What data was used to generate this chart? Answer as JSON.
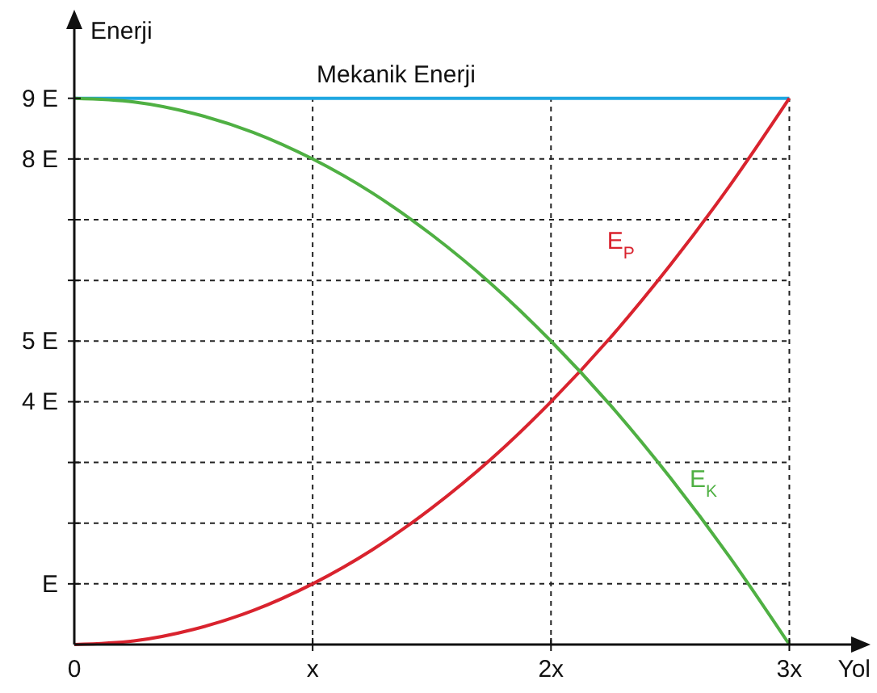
{
  "chart_data": {
    "type": "line",
    "xlabel": "Yol",
    "ylabel": "Enerji",
    "xlim": [
      0,
      3.3
    ],
    "ylim": [
      0,
      10.3
    ],
    "xticks": [
      {
        "value": 0,
        "label": "0"
      },
      {
        "value": 1,
        "label": "x"
      },
      {
        "value": 2,
        "label": "2x"
      },
      {
        "value": 3,
        "label": "3x"
      }
    ],
    "yticks": [
      {
        "value": 1,
        "label": "E"
      },
      {
        "value": 2,
        "label": null
      },
      {
        "value": 3,
        "label": null
      },
      {
        "value": 4,
        "label": "4 E"
      },
      {
        "value": 5,
        "label": "5 E"
      },
      {
        "value": 6,
        "label": null
      },
      {
        "value": 7,
        "label": null
      },
      {
        "value": 8,
        "label": "8 E"
      },
      {
        "value": 9,
        "label": "9 E"
      }
    ],
    "grid": true,
    "marker": "none",
    "line_style": "solid",
    "annotations": [
      {
        "text": "Mekanik Enerji",
        "x": 1.35,
        "y": 9
      }
    ],
    "series": [
      {
        "color": "#1fa7e1",
        "x": [
          0,
          3
        ],
        "values": [
          9,
          9
        ]
      },
      {
        "name": "E$_{P}$",
        "color": "#d9232e",
        "x": [
          0,
          0.25,
          0.5,
          0.75,
          1,
          1.25,
          1.5,
          1.75,
          2,
          2.25,
          2.5,
          2.75,
          3
        ],
        "values": [
          0,
          0.06,
          0.25,
          0.56,
          1,
          1.56,
          2.25,
          3.06,
          4,
          5.06,
          6.25,
          7.56,
          9
        ]
      },
      {
        "name": "E$_{K}$",
        "color": "#4fb043",
        "x": [
          0,
          0.25,
          0.5,
          0.75,
          1,
          1.25,
          1.5,
          1.75,
          2,
          2.25,
          2.5,
          2.75,
          3
        ],
        "values": [
          9,
          8.94,
          8.75,
          8.44,
          8,
          7.44,
          6.75,
          5.94,
          5,
          3.94,
          2.75,
          1.44,
          0
        ]
      }
    ]
  }
}
